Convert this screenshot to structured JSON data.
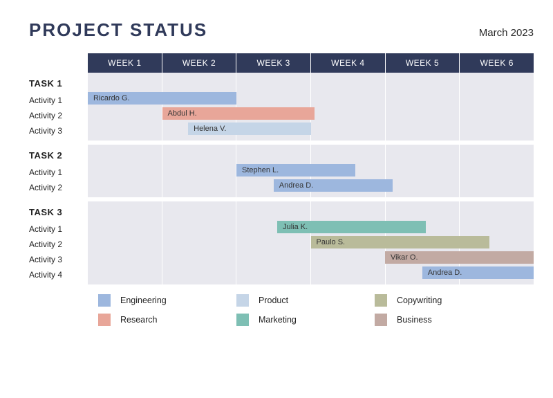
{
  "title": "PROJECT STATUS",
  "date": "March 2023",
  "chart": {
    "type": "gantt",
    "weeks_count": 6,
    "week_header_bg": "#303a5a",
    "week_header_text_color": "#ffffff",
    "grid_bg": "#e8e8ee",
    "grid_line_color": "#ffffff",
    "weeks": [
      "WEEK 1",
      "WEEK 2",
      "WEEK 3",
      "WEEK 4",
      "WEEK 5",
      "WEEK 6"
    ],
    "categories": {
      "engineering": {
        "label": "Engineering",
        "color": "#9db7de"
      },
      "product": {
        "label": "Product",
        "color": "#c5d5e7"
      },
      "research": {
        "label": "Research",
        "color": "#e8a699"
      },
      "marketing": {
        "label": "Marketing",
        "color": "#7ebfb4"
      },
      "copywriting": {
        "label": "Copywriting",
        "color": "#b9bb9a"
      },
      "business": {
        "label": "Business",
        "color": "#c2aaa3"
      }
    },
    "legend_order": [
      "engineering",
      "product",
      "copywriting",
      "research",
      "marketing",
      "business"
    ],
    "tasks": [
      {
        "title": "TASK 1",
        "activities": [
          {
            "label": "Activity 1",
            "bar": {
              "assignee": "Ricardo G.",
              "category": "engineering",
              "start": 0.0,
              "end": 2.0
            }
          },
          {
            "label": "Activity 2",
            "bar": {
              "assignee": "Abdul H.",
              "category": "research",
              "start": 1.0,
              "end": 3.05
            }
          },
          {
            "label": "Activity 3",
            "bar": {
              "assignee": "Helena V.",
              "category": "product",
              "start": 1.35,
              "end": 3.0
            }
          }
        ]
      },
      {
        "title": "TASK 2",
        "activities": [
          {
            "label": "Activity 1",
            "bar": {
              "assignee": "Stephen L.",
              "category": "engineering",
              "start": 2.0,
              "end": 3.6
            }
          },
          {
            "label": "Activity 2",
            "bar": {
              "assignee": "Andrea D.",
              "category": "engineering",
              "start": 2.5,
              "end": 4.1
            }
          }
        ]
      },
      {
        "title": "TASK 3",
        "activities": [
          {
            "label": "Activity 1",
            "bar": {
              "assignee": "Julia K.",
              "category": "marketing",
              "start": 2.55,
              "end": 4.55
            }
          },
          {
            "label": "Activity 2",
            "bar": {
              "assignee": "Paulo S.",
              "category": "copywriting",
              "start": 3.0,
              "end": 5.4
            }
          },
          {
            "label": "Activity 3",
            "bar": {
              "assignee": "Vikar O.",
              "category": "business",
              "start": 4.0,
              "end": 6.0
            }
          },
          {
            "label": "Activity 4",
            "bar": {
              "assignee": "Andrea D.",
              "category": "engineering",
              "start": 4.5,
              "end": 6.0
            }
          }
        ]
      }
    ]
  }
}
